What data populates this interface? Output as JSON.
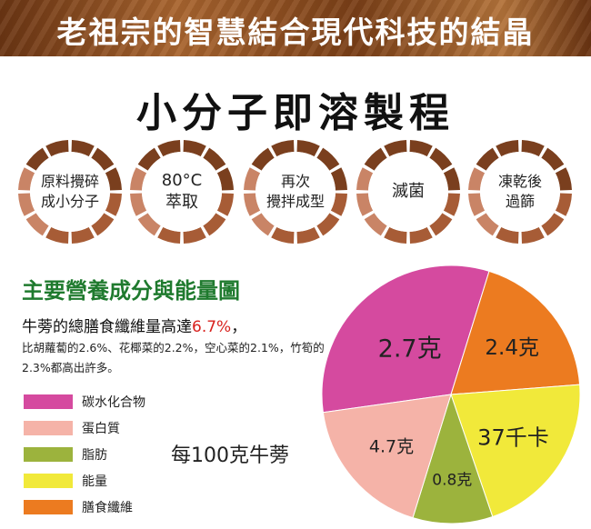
{
  "banner": {
    "title": "老祖宗的智慧結合現代科技的結晶"
  },
  "process": {
    "title": "小分子即溶製程",
    "steps": [
      {
        "line1": "原料攪碎",
        "line2": "成小分子"
      },
      {
        "line1": "80°C",
        "line2": "萃取"
      },
      {
        "line1": "再次",
        "line2": "攪拌成型"
      },
      {
        "line1": "滅菌",
        "line2": ""
      },
      {
        "line1": "凍乾後",
        "line2": "過篩"
      }
    ],
    "ring_colors": [
      "#7a3f1e",
      "#a75c36",
      "#c98466"
    ]
  },
  "nutrition": {
    "title": "主要營養成分與能量圖",
    "desc_main_before": "牛蒡的總膳食纖維量高達",
    "desc_highlight": "6.7%",
    "desc_main_after": "，",
    "desc_detail": "比胡蘿蔔的2.6%、花椰菜的2.2%，空心菜的2.1%，竹筍的2.3%都高出許多。",
    "per_label": "每100克牛蒡",
    "legend": [
      {
        "label": "碳水化合物",
        "color": "#d54a9f"
      },
      {
        "label": "蛋白質",
        "color": "#f5b3a8"
      },
      {
        "label": "脂肪",
        "color": "#9cb33d"
      },
      {
        "label": "能量",
        "color": "#f1e93a"
      },
      {
        "label": "膳食纖維",
        "color": "#ec7b20"
      }
    ]
  },
  "chart_data": {
    "type": "pie",
    "title": "",
    "slices": [
      {
        "label": "2.7克",
        "share": 0.32,
        "color": "#d54a9f"
      },
      {
        "label": "2.4克",
        "share": 0.19,
        "color": "#ec7b20"
      },
      {
        "label": "37千卡",
        "share": 0.21,
        "color": "#f1e93a"
      },
      {
        "label": "0.8克",
        "share": 0.1,
        "color": "#9cb33d"
      },
      {
        "label": "4.7克",
        "share": 0.18,
        "color": "#f5b3a8"
      }
    ]
  }
}
